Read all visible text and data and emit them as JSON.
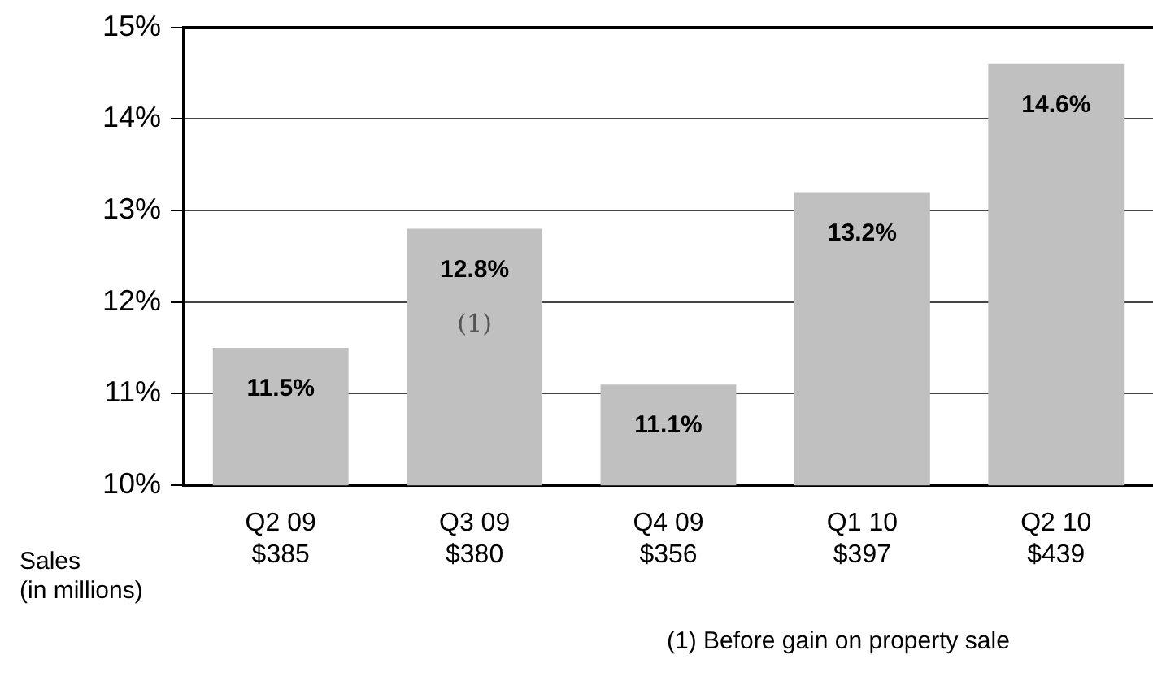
{
  "chart_data": {
    "type": "bar",
    "categories": [
      "Q2 09\n$385",
      "Q3 09\n$380",
      "Q4 09\n$356",
      "Q1 10\n$397",
      "Q2 10\n$439"
    ],
    "values": [
      11.5,
      12.8,
      11.1,
      13.2,
      14.6
    ],
    "value_labels": [
      "11.5%",
      "12.8%",
      "11.1%",
      "13.2%",
      "14.6%"
    ],
    "color": "#c0c0c0",
    "ylim": [
      10,
      15
    ],
    "yticks": [
      {
        "value": 10,
        "label": "10%"
      },
      {
        "value": 11,
        "label": "11%"
      },
      {
        "value": 12,
        "label": "12%"
      },
      {
        "value": 13,
        "label": "13%"
      },
      {
        "value": 14,
        "label": "14%"
      },
      {
        "value": 15,
        "label": "15%"
      }
    ],
    "grid": "y",
    "legend": false,
    "annotations": [
      "(1)",
      "Sales\n(in millions)",
      "(1) Before gain on property sale"
    ]
  }
}
